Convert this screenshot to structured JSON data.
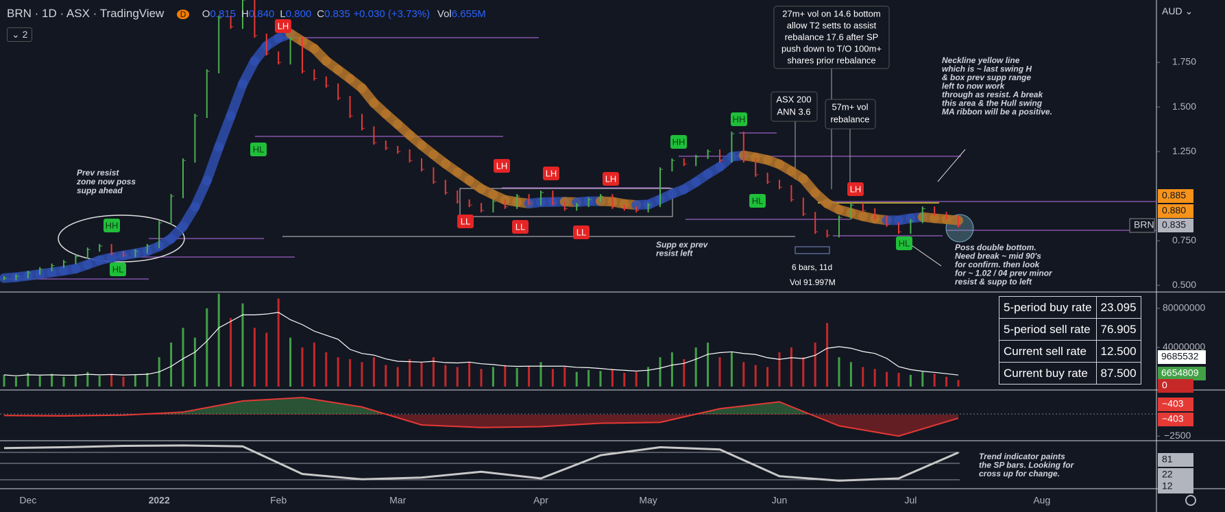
{
  "chart_data": {
    "type": "ohlc",
    "symbol": "BRN",
    "interval": "1D",
    "exchange": "ASX",
    "source": "TradingView",
    "badge": "D",
    "ohlc": [
      {
        "key": "O",
        "value": "0.815"
      },
      {
        "key": "H",
        "value": "0.840"
      },
      {
        "key": "L",
        "value": "0.800"
      },
      {
        "key": "C",
        "value": "0.835"
      }
    ],
    "change": "+0.030 (+3.73%)",
    "vol_key": "Vol",
    "vol": "6.655M",
    "indicator_count": "2",
    "currency": "AUD",
    "categories": [
      null,
      null,
      "Dec",
      null,
      null,
      null,
      null,
      null,
      null,
      null,
      null,
      null,
      null,
      "2022",
      null,
      null,
      null,
      null,
      null,
      null,
      null,
      null,
      null,
      "Feb",
      null,
      null,
      null,
      null,
      null,
      null,
      null,
      null,
      null,
      "Mar",
      null,
      null,
      null,
      null,
      null,
      null,
      null,
      null,
      null,
      null,
      null,
      "Apr",
      null,
      null,
      null,
      null,
      null,
      null,
      null,
      null,
      "May",
      null,
      null,
      null,
      null,
      null,
      null,
      null,
      null,
      null,
      null,
      "Jun",
      null,
      null,
      null,
      null,
      null,
      null,
      null,
      null,
      null,
      null,
      "Jul",
      null,
      null,
      null,
      null,
      null,
      null,
      null,
      null,
      null,
      null,
      "Aug"
    ],
    "values": [
      0.54,
      0.55,
      0.57,
      0.59,
      0.61,
      0.63,
      0.66,
      0.7,
      0.72,
      0.68,
      0.67,
      0.69,
      0.72,
      0.85,
      1.0,
      1.2,
      1.45,
      1.7,
      2.0,
      1.95,
      2.1,
      1.9,
      1.8,
      1.75,
      1.88,
      1.7,
      1.66,
      1.62,
      1.55,
      1.45,
      1.38,
      1.3,
      1.27,
      1.25,
      1.2,
      1.15,
      1.08,
      1.02,
      0.97,
      0.95,
      0.92,
      0.97,
      0.94,
      1.0,
      0.96,
      1.02,
      0.96,
      0.93,
      0.95,
      0.98,
      1.0,
      0.94,
      0.93,
      0.92,
      0.95,
      1.15,
      1.2,
      1.18,
      1.22,
      1.25,
      1.2,
      1.35,
      1.2,
      1.12,
      1.08,
      1.05,
      0.98,
      0.9,
      0.8,
      0.78,
      0.88,
      0.95,
      0.92,
      0.88,
      0.84,
      0.8,
      0.86,
      0.93,
      0.9,
      0.88,
      0.835,
      null,
      null,
      null,
      null,
      null,
      null,
      null
    ],
    "ylim": [
      0.47,
      2.1
    ],
    "yticks": [
      {
        "value": 1.75,
        "label": "1.750"
      },
      {
        "value": 1.5,
        "label": "1.500"
      },
      {
        "value": 1.25,
        "label": "1.250"
      },
      {
        "value": 0.75,
        "label": "0.750"
      },
      {
        "value": 0.5,
        "label": "0.500"
      }
    ],
    "price_labels": [
      "0.885",
      "0.880",
      "0.835"
    ],
    "symbol_tag": "BRN",
    "volume": [
      12000000,
      10000000,
      14000000,
      11000000,
      13000000,
      10000000,
      12000000,
      15000000,
      11000000,
      13000000,
      10000000,
      12000000,
      14000000,
      30000000,
      45000000,
      60000000,
      50000000,
      80000000,
      95000000,
      70000000,
      85000000,
      60000000,
      55000000,
      90000000,
      50000000,
      40000000,
      45000000,
      35000000,
      30000000,
      28000000,
      25000000,
      30000000,
      22000000,
      20000000,
      28000000,
      25000000,
      30000000,
      22000000,
      20000000,
      25000000,
      18000000,
      20000000,
      22000000,
      19000000,
      21000000,
      25000000,
      18000000,
      20000000,
      15000000,
      17000000,
      16000000,
      18000000,
      14000000,
      15000000,
      20000000,
      30000000,
      35000000,
      28000000,
      40000000,
      45000000,
      30000000,
      35000000,
      25000000,
      22000000,
      20000000,
      35000000,
      40000000,
      30000000,
      45000000,
      65000000,
      30000000,
      25000000,
      20000000,
      18000000,
      15000000,
      14000000,
      12000000,
      15000000,
      13000000,
      10000000,
      6654809,
      null,
      null,
      null,
      null,
      null,
      null,
      null
    ],
    "volume_ylim": [
      0,
      96000000
    ],
    "volume_yticks": [
      80000000,
      40000000
    ],
    "volume_labels": [
      "9685532",
      "6654809",
      "0"
    ],
    "oscillator": [
      -100,
      -150,
      -50,
      300,
      1600,
      2000,
      900,
      -1200,
      -1500,
      -1400,
      -1000,
      -900,
      700,
      1500,
      -1300,
      -2500,
      -403
    ],
    "oscillator_ylim": [
      -2800,
      2800
    ],
    "oscillator_yticks": [
      {
        "value": -2500,
        "label": "−2500"
      }
    ],
    "oscillator_labels": [
      "−403",
      "−403"
    ],
    "trend": [
      88,
      90,
      93,
      94,
      92,
      30,
      18,
      22,
      35,
      20,
      72,
      90,
      85,
      25,
      15,
      20,
      78
    ],
    "trend_ylim": [
      0,
      100
    ],
    "trend_labels": [
      "81",
      "22",
      "12"
    ],
    "swing_labels": [
      "HH",
      "HL",
      "HL",
      "LH",
      "LH",
      "LH",
      "LH",
      "LL",
      "LL",
      "LL",
      "HH",
      "HH",
      "HL",
      "LH",
      "HL"
    ],
    "table": {
      "rows": [
        [
          "5-period buy rate",
          "23.095"
        ],
        [
          "5-period sell rate",
          "76.905"
        ],
        [
          "Current sell rate",
          "12.500"
        ],
        [
          "Current buy rate",
          "87.500"
        ]
      ]
    },
    "annotations": {
      "prev_resist": [
        "Prev resist",
        "zone now poss",
        "supp ahead"
      ],
      "rebalance_note": [
        "27m+ vol on 14.6 bottom",
        "allow T2  setts to assist",
        "rebalance 17.6 after SP",
        "push down to T/O 100m+",
        "shares prior rebalance"
      ],
      "asx200": [
        "ASX 200",
        "ANN 3.6"
      ],
      "vol57": [
        "57m+ vol",
        "rebalance"
      ],
      "neckline": [
        "Neckline yellow line",
        "which is ~ last swing H",
        "& box prev supp range",
        "left to now work",
        "through as resist. A break",
        "this area & the Hull swing",
        "MA ribbon will be a positive."
      ],
      "supp": [
        "Supp ex prev",
        "resist left"
      ],
      "bars": "6 bars, 11d",
      "bars_vol": "Vol 91.997M",
      "double_bottom": [
        "Poss double bottom.",
        "Need break ~ mid 90's",
        "for confirm. then look",
        "for ~ 1.02 / 04 prev minor",
        "resist & supp to left"
      ],
      "trend_note": [
        "Trend indicator paints",
        "the SP bars. Looking for",
        "cross up for change."
      ]
    }
  }
}
